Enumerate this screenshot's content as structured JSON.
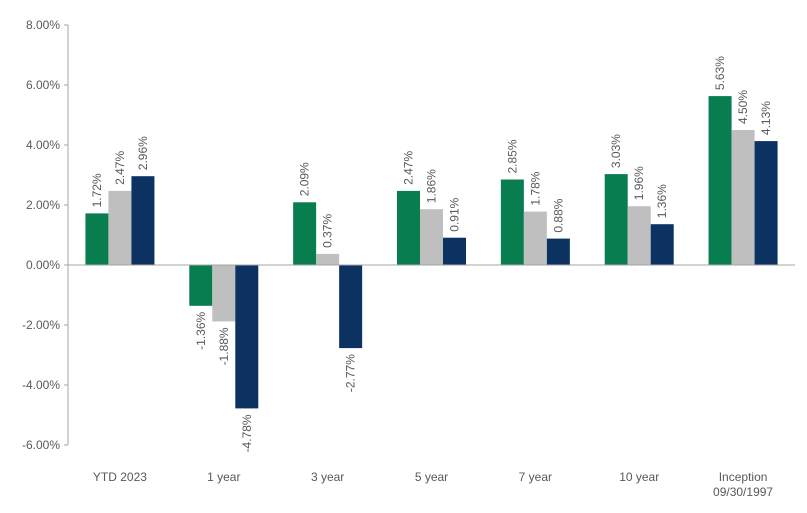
{
  "chart_data": {
    "type": "bar",
    "title": "",
    "xlabel": "",
    "ylabel": "",
    "ylim": [
      -6,
      8
    ],
    "yticks": [
      "8.00%",
      "6.00%",
      "4.00%",
      "2.00%",
      "0.00%",
      "-2.00%",
      "-4.00%",
      "-6.00%"
    ],
    "grid": false,
    "legend": "none",
    "categories": [
      [
        "YTD 2023"
      ],
      [
        "1 year"
      ],
      [
        "3 year"
      ],
      [
        "5 year"
      ],
      [
        "7 year"
      ],
      [
        "10 year"
      ],
      [
        "Inception",
        "09/30/1997"
      ]
    ],
    "series": [
      {
        "color": "#087d4f",
        "values": [
          1.72,
          -1.36,
          2.09,
          2.47,
          2.85,
          3.03,
          5.63
        ],
        "labels": [
          "1.72%",
          "-1.36%",
          "2.09%",
          "2.47%",
          "2.85%",
          "3.03%",
          "5.63%"
        ]
      },
      {
        "color": "#bfbfbf",
        "values": [
          2.47,
          -1.88,
          0.37,
          1.86,
          1.78,
          1.96,
          4.5
        ],
        "labels": [
          "2.47%",
          "-1.88%",
          "0.37%",
          "1.86%",
          "1.78%",
          "1.96%",
          "4.50%"
        ]
      },
      {
        "color": "#0b3260",
        "values": [
          2.96,
          -4.78,
          -2.77,
          0.91,
          0.88,
          1.36,
          4.13
        ],
        "labels": [
          "2.96%",
          "-4.78%",
          "-2.77%",
          "0.91%",
          "0.88%",
          "1.36%",
          "4.13%"
        ]
      }
    ]
  }
}
